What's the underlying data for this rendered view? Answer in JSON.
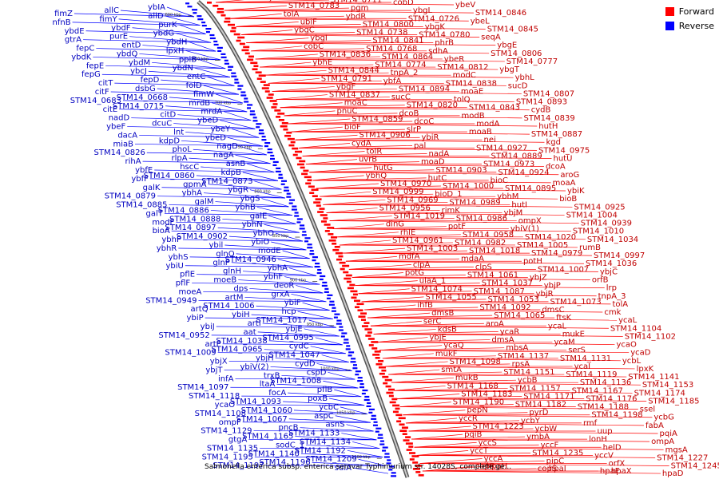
{
  "legend": {
    "forward_label": "Forward",
    "reverse_label": "Reverse",
    "forward_color": "#ff0000",
    "reverse_color": "#0000ff"
  },
  "footer": {
    "title": "Salmonella enterica subsp. enterica serovar Typhimurium str. 14028S, complete ge..."
  },
  "chart_data": {
    "type": "circular_genome_map",
    "ruler_unit": "kbp",
    "ruler_ticks_kbp": [
      600,
      650,
      700,
      750,
      800,
      850,
      900,
      950,
      1000,
      1050,
      1100
    ],
    "forward_labels": [
      "ybdL",
      "STM14_0711",
      "cobD",
      "ybeV",
      "STM14_0783",
      "pgm",
      "ybgL",
      "STM14_0846",
      "tolA",
      "ybdR",
      "STM14_0726",
      "ybeL",
      "ubiF",
      "STM14_0800",
      "ybgK",
      "STM14_0845",
      "ybgC",
      "STM14_0738",
      "STM14_0780",
      "seqA",
      "ybgI",
      "STM14_0841",
      "phrB",
      "ybgE",
      "cobC",
      "STM14_0768",
      "sdhA",
      "STM14_0806",
      "STM14_0836",
      "STM14_0864",
      "ybeR",
      "STM14_0777",
      "ybhE",
      "STM14_0774",
      "STM14_0812",
      "ybgT",
      "STM14_0844",
      "tnpA_2",
      "modC",
      "ybhL",
      "STM14_0791",
      "ybfA",
      "STM14_0838",
      "sucD",
      "ybgF",
      "STM14_0894",
      "moaE",
      "STM14_0807",
      "STM14_0837",
      "sucC",
      "tolQ",
      "STM14_0893",
      "moaC",
      "STM14_0820",
      "STM14_0843",
      "cydB",
      "pnuC",
      "dcoB",
      "modB",
      "STM14_0839",
      "STM14_0859",
      "dcoC",
      "modA",
      "hutH",
      "bioF",
      "slrP",
      "moaB",
      "STM14_0887",
      "STM14_0906",
      "ybiR",
      "nei",
      "kgd",
      "cydA",
      "pal",
      "STM14_0927",
      "STM14_0975",
      "tolR",
      "nadA",
      "STM14_0889",
      "hutU",
      "uvrB",
      "moaD",
      "STM14_0973",
      "dcoA",
      "hutG",
      "STM14_0903",
      "STM14_0924",
      "aroG",
      "ybhQ",
      "hutC",
      "bioC",
      "moaA",
      "STM14_0970",
      "STM14_1000",
      "STM14_0895",
      "ybiK",
      "STM14_0999",
      "bioD_1",
      "ybhM",
      "bioB",
      "STM14_0969",
      "STM14_0989",
      "hutI",
      "STM14_0925",
      "STM14_0956",
      "rimK",
      "ybjM",
      "STM14_1004",
      "STM14_1019",
      "STM14_0986",
      "ompX",
      "STM14_0939",
      "dinG",
      "potF",
      "ybiV(1)",
      "STM14_1010",
      "rhlE",
      "STM14_0958",
      "STM14_1020",
      "STM14_1034",
      "STM14_0961",
      "STM14_0982",
      "STM14_1005",
      "rumB",
      "STM14_1003",
      "STM14_1018",
      "STM14_0979",
      "STM14_0997",
      "mdfA",
      "mdaA",
      "potH",
      "STM14_1036",
      "clpA",
      "clpS",
      "STM14_1007",
      "ybjC",
      "potG",
      "STM14_1061",
      "ybjZ",
      "orfB",
      "ulaA_1",
      "STM14_1037",
      "ybjP",
      "lrp",
      "STM14_1074",
      "STM14_1087",
      "ybjR",
      "tnpA_3",
      "STM14_1055",
      "STM14_1053",
      "STM14_1073",
      "tolA",
      "ihfB",
      "STM14_1092",
      "dmsC",
      "cmk",
      "dmsB",
      "STM14_1065",
      "ftsK",
      "ycaL",
      "serC",
      "aroA",
      "ycaL",
      "STM14_1104",
      "kdsB",
      "ycaR",
      "mukE",
      "STM14_1102",
      "ybjE",
      "dmsA",
      "ycaM",
      "ycaO",
      "ycaQ",
      "mbsA",
      "serS",
      "ycaD",
      "mukF",
      "STM14_1137",
      "STM14_1131",
      "ycbL",
      "STM14_1098",
      "rpsA",
      "ycaI",
      "lpxK",
      "smtA",
      "STM14_1151",
      "STM14_1119",
      "STM14_1141",
      "mukB",
      "ycbB",
      "STM14_1136",
      "STM14_1153",
      "STM14_1168",
      "STM14_1157",
      "STM14_1167",
      "STM14_1174",
      "STM14_1183",
      "STM14_1171",
      "STM14_1176",
      "STM14_1185",
      "STM14_1190",
      "STM14_1182",
      "STM14_1188",
      "ssel",
      "pepN",
      "pyrD",
      "STM14_1198",
      "ycbG",
      "yccR",
      "ycbY",
      "rmf",
      "fabA",
      "STM14_1223",
      "ycbW",
      "uup",
      "pqiA",
      "pqiB",
      "ymbA",
      "lonH",
      "ompA",
      "yccS",
      "yccF",
      "helD",
      "mgsA",
      "yccT",
      "STM14_1235",
      "yccV",
      "STM14_1227",
      "yccA",
      "pipC",
      "orfX",
      "STM14_1245",
      "copR",
      "copS",
      "hpaF",
      "hpaD",
      "hpaH",
      "hpaI",
      "hpaX"
    ],
    "reverse_labels": [
      "ybIA",
      "allC",
      "fimZ",
      "allD",
      "fimY",
      "nfnB",
      "purK",
      "ybdF",
      "ybdE",
      "ybdG",
      "purE",
      "gtrA",
      "ybdH",
      "entD",
      "fepC",
      "lpxH",
      "ybdQ",
      "ybdK",
      "ppiB",
      "ybdM",
      "fepE",
      "ybdN",
      "ybcJ",
      "fepG",
      "entC",
      "fepD",
      "citT",
      "folD",
      "dsbG",
      "citF",
      "fimW",
      "STM14_0668",
      "STM14_0683",
      "mrdB",
      "STM14_0715",
      "citE",
      "mrdA",
      "citD",
      "nadD",
      "ybeD",
      "dcuC",
      "ybeF",
      "ybeY",
      "lnt",
      "dacA",
      "ybeD",
      "kdpD",
      "miaB",
      "nagD",
      "phoL",
      "STM14_0826",
      "nagA",
      "rlpA",
      "rihA",
      "asnB",
      "hscC",
      "ybfE",
      "kdpB",
      "STM14_0860",
      "ybfF",
      "STM14_0873",
      "gpmA",
      "galK",
      "ybgR",
      "ybhA",
      "STM14_0879",
      "ybgS",
      "galM",
      "STM14_0885",
      "ybhB",
      "STM14_0886",
      "galT",
      "galE",
      "STM14_0888",
      "modF",
      "ybhN",
      "STM14_0897",
      "bioA",
      "ybhO",
      "STM14_0902",
      "ybhP",
      "ybiO",
      "ybil",
      "ybhR",
      "modE",
      "glnQ",
      "ybhS",
      "STM14_0946",
      "glnP",
      "ybiU",
      "ybhA",
      "glnH",
      "pflE",
      "ybhF",
      "moeB",
      "pflF",
      "deoR",
      "dps",
      "moeA",
      "grxA",
      "artM",
      "STM14_0949",
      "ybiF",
      "STM14_1006",
      "artQ",
      "hcp",
      "ybiH",
      "ybiP",
      "STM14_1017",
      "artI",
      "ybiJ",
      "ybjE",
      "aat",
      "STM14_0952",
      "STM14_0995",
      "STM14_1038",
      "artP",
      "cydC",
      "STM14_0965",
      "STM14_1009",
      "STM14_1047",
      "ybjH",
      "ybjX",
      "cydD",
      "ybiV(2)",
      "ybjT",
      "cspD",
      "trxB",
      "infA",
      "STM14_1008",
      "ltaA",
      "STM14_1097",
      "pflB",
      "focA",
      "STM14_1118",
      "poxB",
      "STM14_1093",
      "ycaO",
      "ycbC",
      "STM14_1060",
      "STM14_1108",
      "aspC",
      "STM14_1067",
      "ompF",
      "asnS",
      "pncB",
      "STM14_1129",
      "STM14_1133",
      "STM14_1165",
      "gtgA",
      "STM14_1134",
      "sodC_1",
      "STM14_1135",
      "STM14_1192",
      "STM14_1140",
      "STM14_1195",
      "STM14_1209",
      "STM14_1196",
      "STM14_1197",
      "sulA"
    ]
  }
}
